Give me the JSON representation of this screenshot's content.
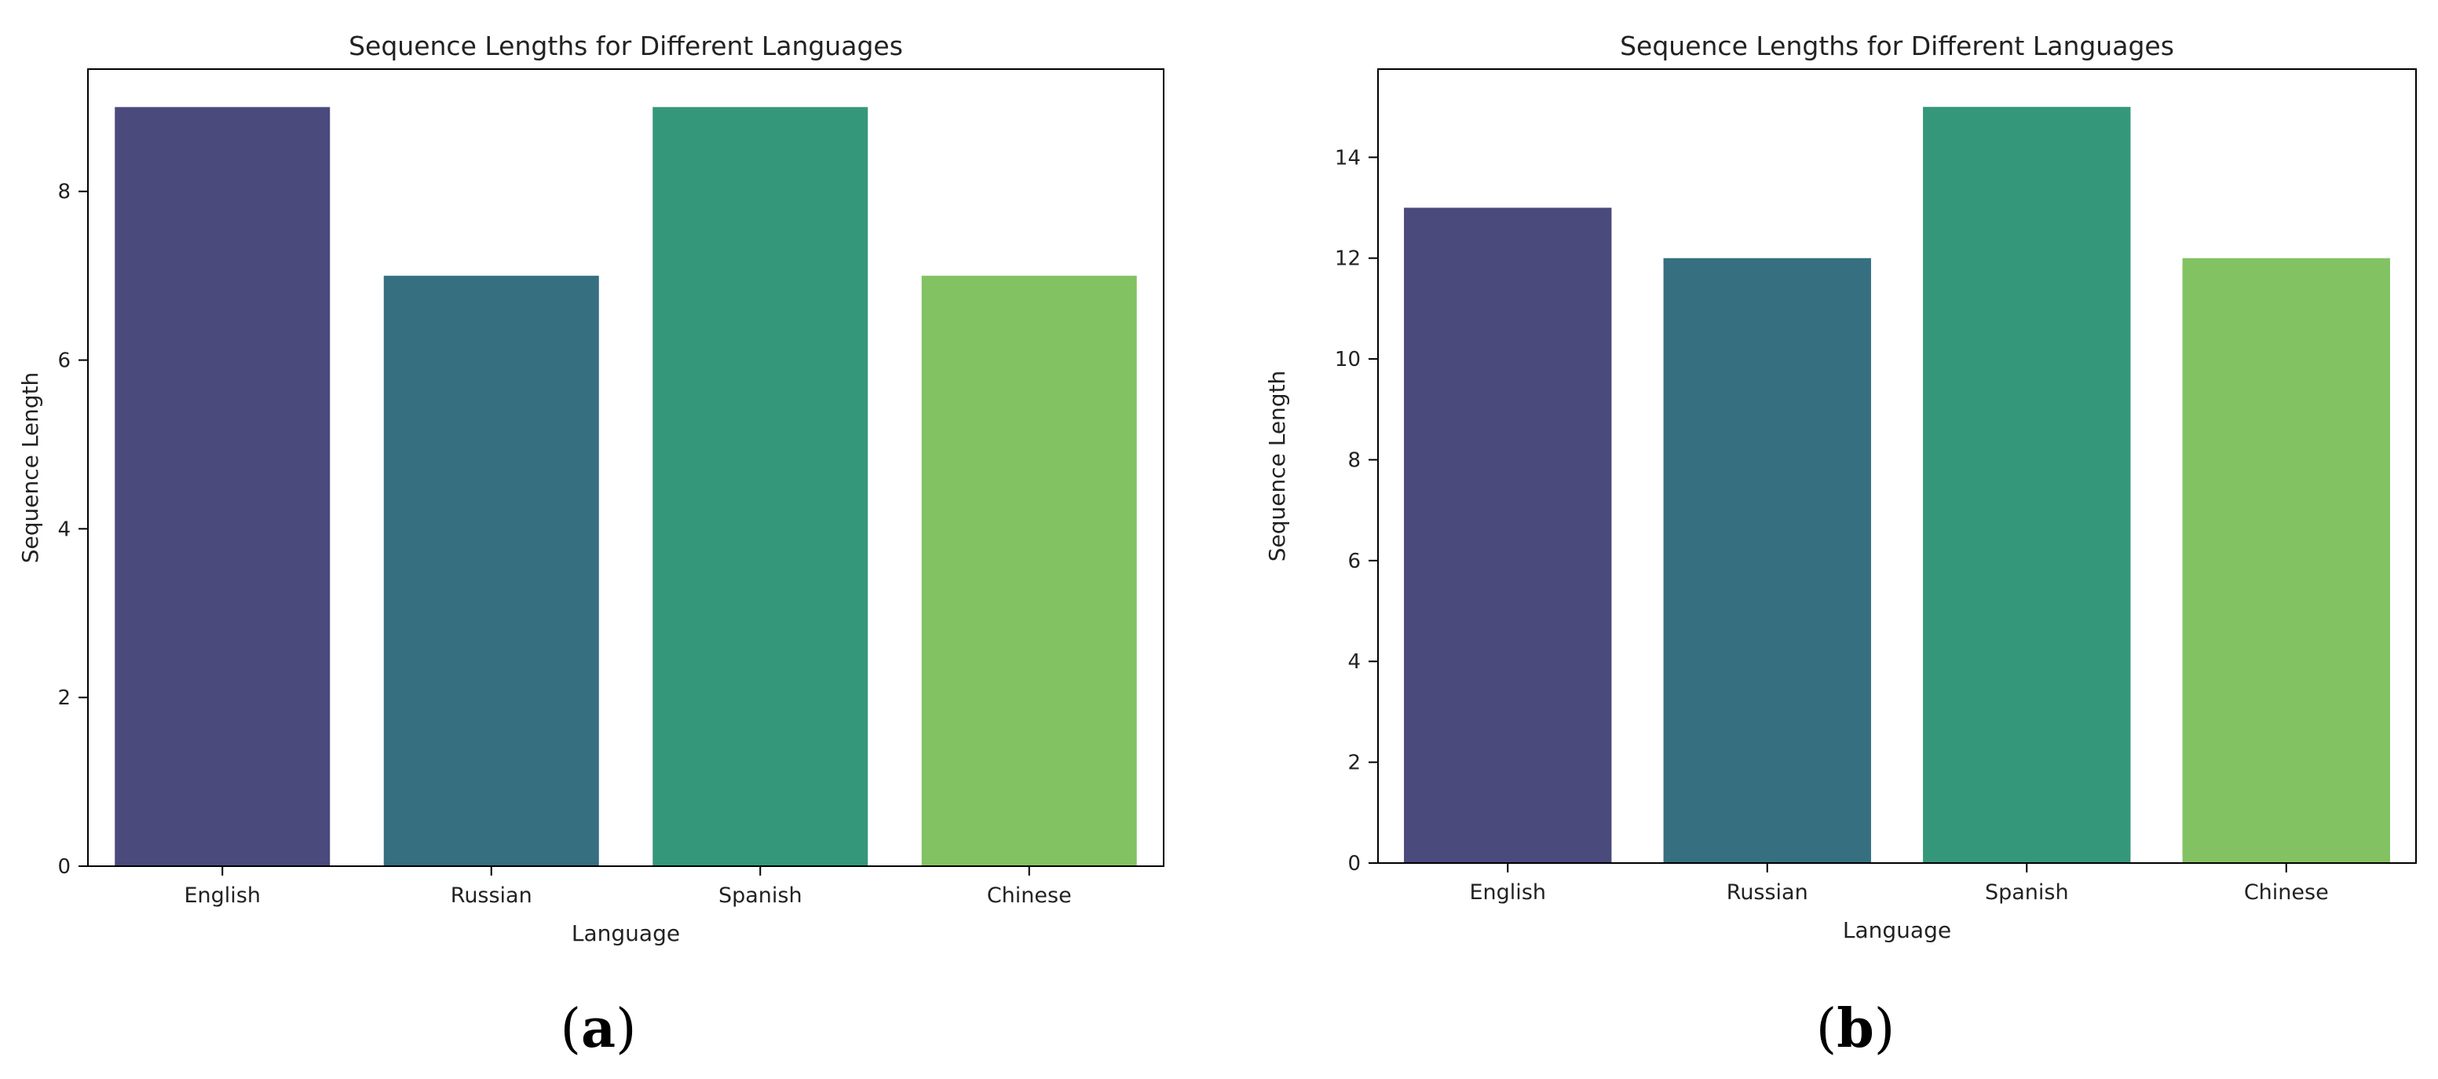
{
  "chart_data": [
    {
      "panel": "(a)",
      "type": "bar",
      "title": "Sequence Lengths for Different Languages",
      "xlabel": "Language",
      "ylabel": "Sequence Length",
      "categories": [
        "English",
        "Russian",
        "Spanish",
        "Chinese"
      ],
      "values": [
        9,
        7,
        9,
        7
      ],
      "ylim": [
        0,
        9.45
      ],
      "yticks": [
        0,
        2,
        4,
        6,
        8
      ],
      "colors": [
        "#4b4a7d",
        "#356f80",
        "#35977a",
        "#82c262"
      ],
      "grid": false,
      "legend": false
    },
    {
      "panel": "(b)",
      "type": "bar",
      "title": "Sequence Lengths for Different Languages",
      "xlabel": "Language",
      "ylabel": "Sequence Length",
      "categories": [
        "English",
        "Russian",
        "Spanish",
        "Chinese"
      ],
      "values": [
        13,
        12,
        15,
        12
      ],
      "ylim": [
        0,
        15.75
      ],
      "yticks": [
        0,
        2,
        4,
        6,
        8,
        10,
        12,
        14
      ],
      "colors": [
        "#4b4a7d",
        "#356f80",
        "#35977a",
        "#82c262"
      ],
      "grid": false,
      "legend": false
    }
  ]
}
